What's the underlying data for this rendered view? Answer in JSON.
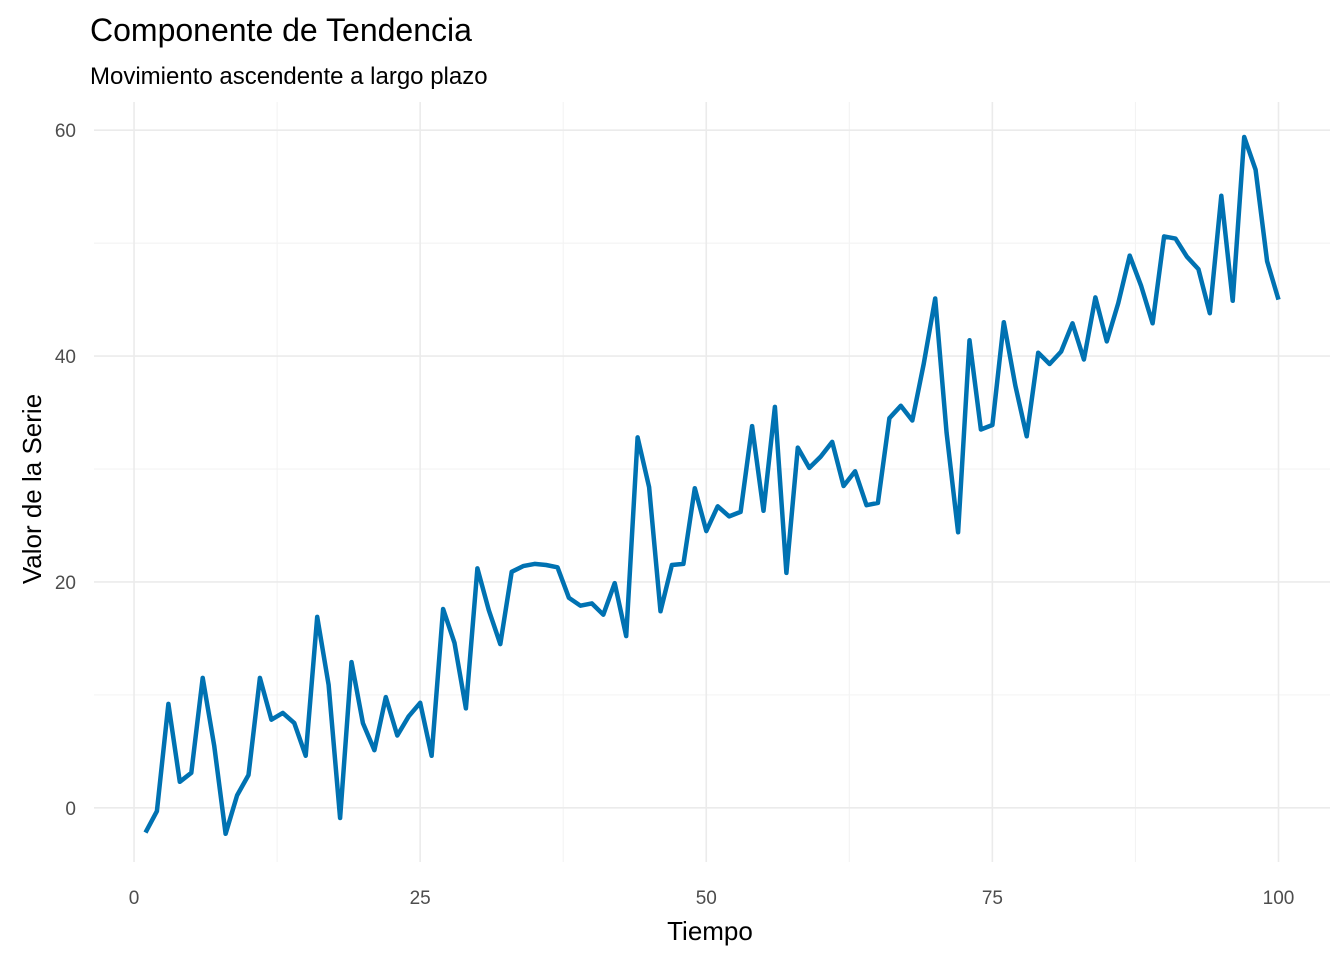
{
  "chart_data": {
    "type": "line",
    "title": "Componente de Tendencia",
    "subtitle": "Movimiento ascendente a largo plazo",
    "xlabel": "Tiempo",
    "ylabel": "Valor de la Serie",
    "xlim": [
      -3.5,
      104.5
    ],
    "ylim": [
      -4.8,
      62.5
    ],
    "x_ticks": [
      0,
      25,
      50,
      75,
      100
    ],
    "x_tick_labels": [
      "0",
      "25",
      "50",
      "75",
      "100"
    ],
    "y_ticks": [
      0,
      20,
      40,
      60
    ],
    "y_tick_labels": [
      "0",
      "20",
      "40",
      "60"
    ],
    "grid": true,
    "legend": "none",
    "line_color": "#0072B2",
    "series": [
      {
        "x": [
          1,
          2,
          3,
          4,
          5,
          6,
          7,
          8,
          9,
          10,
          11,
          12,
          13,
          14,
          15,
          16,
          17,
          18,
          19,
          20,
          21,
          22,
          23,
          24,
          25,
          26,
          27,
          28,
          29,
          30,
          31,
          32,
          33,
          34,
          35,
          36,
          37,
          38,
          39,
          40,
          41,
          42,
          43,
          44,
          45,
          46,
          47,
          48,
          49,
          50,
          51,
          52,
          53,
          54,
          55,
          56,
          57,
          58,
          59,
          60,
          61,
          62,
          63,
          64,
          65,
          66,
          67,
          68,
          69,
          70,
          71,
          72,
          73,
          74,
          75,
          76,
          77,
          78,
          79,
          80,
          81,
          82,
          83,
          84,
          85,
          86,
          87,
          88,
          89,
          90,
          91,
          92,
          93,
          94,
          95,
          96,
          97,
          98,
          99,
          100
        ],
        "values": [
          -2.2,
          -0.3,
          9.2,
          2.3,
          3.1,
          11.5,
          5.5,
          -2.3,
          1.1,
          2.9,
          11.5,
          7.8,
          8.4,
          7.5,
          4.6,
          16.9,
          10.9,
          -0.9,
          12.9,
          7.5,
          5.1,
          9.8,
          6.4,
          8.1,
          9.3,
          4.6,
          17.6,
          14.6,
          8.8,
          21.2,
          17.5,
          14.5,
          20.9,
          21.4,
          21.6,
          21.5,
          21.3,
          18.6,
          17.9,
          18.1,
          17.1,
          19.9,
          15.2,
          32.8,
          28.4,
          17.4,
          21.5,
          21.6,
          28.3,
          24.5,
          26.7,
          25.8,
          26.2,
          33.8,
          26.3,
          35.5,
          20.8,
          31.9,
          30.1,
          31.1,
          32.4,
          28.5,
          29.8,
          26.8,
          27.0,
          34.5,
          35.6,
          34.3,
          39.3,
          45.1,
          33.2,
          24.4,
          41.4,
          33.5,
          33.9,
          43.0,
          37.4,
          32.9,
          40.3,
          39.3,
          40.4,
          42.9,
          39.7,
          45.2,
          41.3,
          44.7,
          48.9,
          46.2,
          42.9,
          50.6,
          50.4,
          48.8,
          47.7,
          43.8,
          54.2,
          44.9,
          59.4,
          56.5,
          48.4,
          45.0
        ]
      }
    ]
  }
}
